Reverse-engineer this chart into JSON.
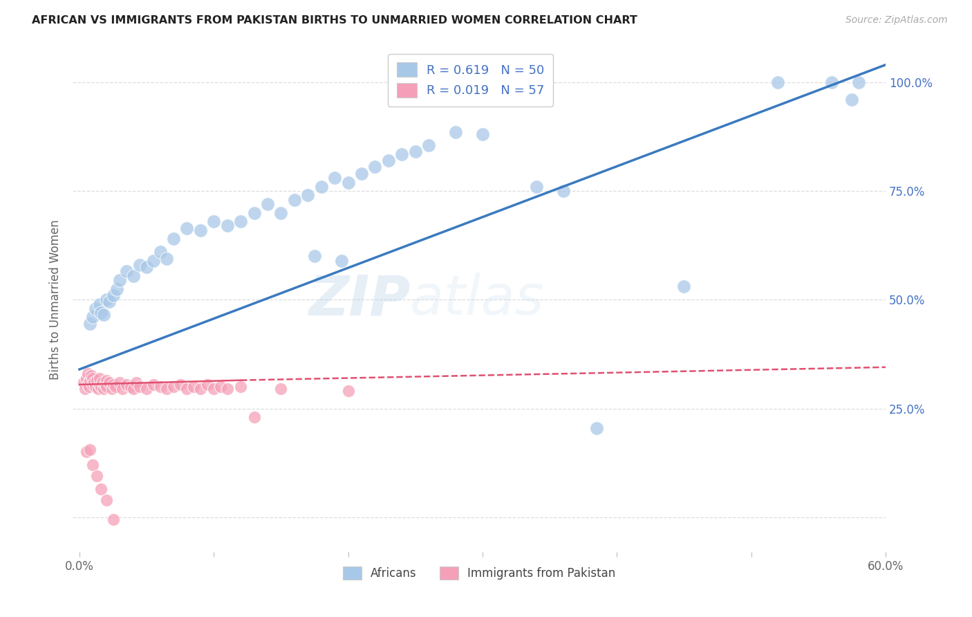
{
  "title": "AFRICAN VS IMMIGRANTS FROM PAKISTAN BIRTHS TO UNMARRIED WOMEN CORRELATION CHART",
  "source": "Source: ZipAtlas.com",
  "ylabel": "Births to Unmarried Women",
  "xlim": [
    -0.005,
    0.6
  ],
  "ylim": [
    -0.08,
    1.08
  ],
  "africans_label": "Africans",
  "pakistan_label": "Immigrants from Pakistan",
  "blue_color": "#a8c8e8",
  "blue_line_color": "#3a7abf",
  "pink_color": "#f5a0b8",
  "pink_line_color": "#e05070",
  "watermark_zip": "ZIP",
  "watermark_atlas": "atlas",
  "grid_color": "#dddddd",
  "bg_color": "#ffffff",
  "x_tick_positions": [
    0.0,
    0.1,
    0.2,
    0.3,
    0.4,
    0.5,
    0.6
  ],
  "x_tick_labels": [
    "0.0%",
    "",
    "",
    "",
    "",
    "",
    "60.0%"
  ],
  "y_tick_positions": [
    0.0,
    0.25,
    0.5,
    0.75,
    1.0
  ],
  "y_tick_labels_right": [
    "",
    "25.0%",
    "50.0%",
    "75.0%",
    "100.0%"
  ],
  "blue_trendline": [
    0.0,
    0.34,
    0.6,
    1.04
  ],
  "pink_trendline_solid": [
    0.0,
    0.305,
    0.12,
    0.315
  ],
  "pink_trendline_dashed": [
    0.12,
    0.315,
    0.6,
    0.345
  ],
  "blue_scatter_x": [
    0.008,
    0.01,
    0.012,
    0.015,
    0.016,
    0.018,
    0.02,
    0.022,
    0.025,
    0.028,
    0.03,
    0.035,
    0.04,
    0.045,
    0.05,
    0.055,
    0.06,
    0.065,
    0.07,
    0.08,
    0.09,
    0.1,
    0.11,
    0.12,
    0.13,
    0.14,
    0.15,
    0.16,
    0.17,
    0.18,
    0.19,
    0.2,
    0.21,
    0.22,
    0.23,
    0.24,
    0.25,
    0.26,
    0.28,
    0.3,
    0.175,
    0.195,
    0.34,
    0.36,
    0.45,
    0.52,
    0.56,
    0.58,
    0.575,
    0.385
  ],
  "blue_scatter_y": [
    0.445,
    0.46,
    0.48,
    0.49,
    0.47,
    0.465,
    0.5,
    0.495,
    0.51,
    0.525,
    0.545,
    0.565,
    0.555,
    0.58,
    0.575,
    0.59,
    0.61,
    0.595,
    0.64,
    0.665,
    0.66,
    0.68,
    0.67,
    0.68,
    0.7,
    0.72,
    0.7,
    0.73,
    0.74,
    0.76,
    0.78,
    0.77,
    0.79,
    0.805,
    0.82,
    0.835,
    0.84,
    0.855,
    0.885,
    0.88,
    0.6,
    0.59,
    0.76,
    0.75,
    0.53,
    1.0,
    1.0,
    1.0,
    0.96,
    0.205
  ],
  "pink_scatter_x": [
    0.003,
    0.004,
    0.005,
    0.006,
    0.006,
    0.007,
    0.008,
    0.009,
    0.01,
    0.01,
    0.011,
    0.012,
    0.013,
    0.014,
    0.015,
    0.015,
    0.016,
    0.017,
    0.018,
    0.019,
    0.02,
    0.02,
    0.022,
    0.024,
    0.025,
    0.027,
    0.03,
    0.032,
    0.035,
    0.038,
    0.04,
    0.042,
    0.045,
    0.05,
    0.055,
    0.06,
    0.065,
    0.07,
    0.075,
    0.08,
    0.085,
    0.09,
    0.095,
    0.1,
    0.105,
    0.11,
    0.12,
    0.13,
    0.15,
    0.2,
    0.005,
    0.008,
    0.01,
    0.013,
    0.016,
    0.02,
    0.025
  ],
  "pink_scatter_y": [
    0.31,
    0.295,
    0.32,
    0.305,
    0.33,
    0.3,
    0.315,
    0.325,
    0.305,
    0.32,
    0.31,
    0.3,
    0.315,
    0.295,
    0.305,
    0.32,
    0.3,
    0.31,
    0.295,
    0.305,
    0.315,
    0.3,
    0.31,
    0.295,
    0.305,
    0.3,
    0.31,
    0.295,
    0.305,
    0.3,
    0.295,
    0.31,
    0.3,
    0.295,
    0.305,
    0.3,
    0.295,
    0.3,
    0.305,
    0.295,
    0.3,
    0.295,
    0.305,
    0.295,
    0.3,
    0.295,
    0.3,
    0.23,
    0.295,
    0.29,
    0.15,
    0.155,
    0.12,
    0.095,
    0.065,
    0.04,
    -0.005
  ],
  "legend_entries": [
    {
      "label": "R = 0.619   N = 50",
      "color": "#a8c8e8"
    },
    {
      "label": "R = 0.019   N = 57",
      "color": "#f5a0b8"
    }
  ]
}
